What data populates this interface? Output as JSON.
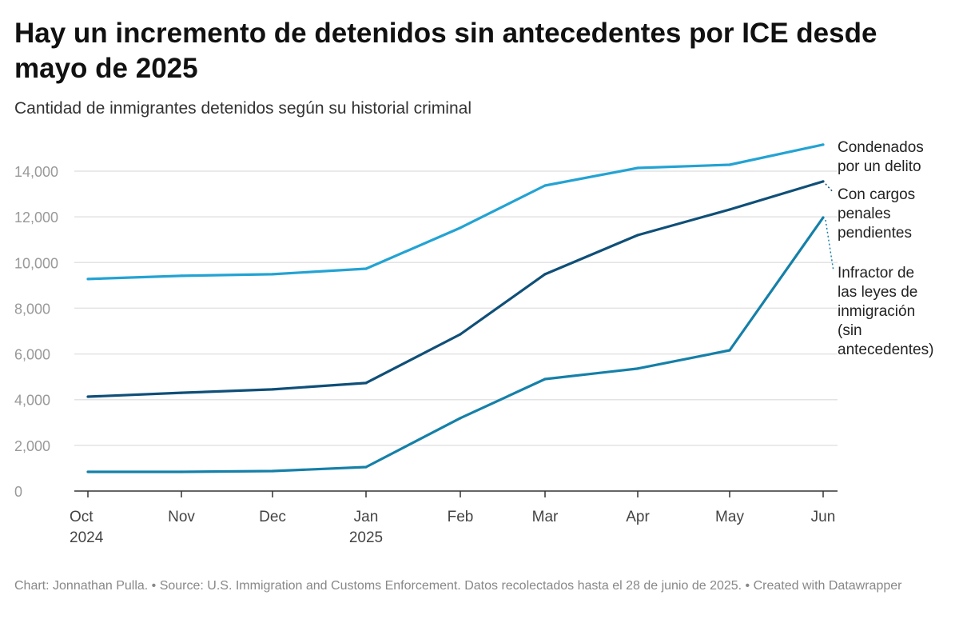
{
  "title": "Hay un incremento de detenidos sin antecedentes por ICE desde mayo de 2025",
  "subtitle": "Cantidad de inmigrantes detenidos según su historial criminal",
  "footer": "Chart: Jonnathan Pulla. • Source: U.S. Immigration and Customs Enforcement. Datos recolectados hasta el 28 de junio de 2025. • Created with Datawrapper",
  "chart_data": {
    "type": "line",
    "categories": [
      "Oct 2024",
      "Nov",
      "Dec",
      "Jan 2025",
      "Feb",
      "Mar",
      "Apr",
      "May",
      "Jun"
    ],
    "x_tick_labels": [
      [
        "Oct",
        "2024"
      ],
      [
        "Nov"
      ],
      [
        "Dec"
      ],
      [
        "Jan",
        "2025"
      ],
      [
        "Feb"
      ],
      [
        "Mar"
      ],
      [
        "Apr"
      ],
      [
        "May"
      ],
      [
        "Jun"
      ]
    ],
    "ylim": [
      0,
      15500
    ],
    "y_ticks": [
      0,
      2000,
      4000,
      6000,
      8000,
      10000,
      12000,
      14000
    ],
    "y_tick_labels": [
      "0",
      "2,000",
      "4,000",
      "6,000",
      "8,000",
      "10,000",
      "12,000",
      "14,000"
    ],
    "grid": true,
    "legend": "direct labels at right",
    "series": [
      {
        "name": "Condenados por un delito",
        "label_lines": [
          "Condenados",
          "por un delito"
        ],
        "color": "#23a3d3",
        "values": [
          9280,
          9420,
          9490,
          9730,
          11520,
          13370,
          14140,
          14280,
          15160
        ]
      },
      {
        "name": "Con cargos penales pendientes",
        "label_lines": [
          "Con cargos",
          "penales",
          "pendientes"
        ],
        "color": "#0f4f78",
        "values": [
          4130,
          4300,
          4450,
          4730,
          6860,
          9490,
          11200,
          12320,
          13550
        ]
      },
      {
        "name": "Infractor de las leyes de inmigración (sin antecedentes)",
        "label_lines": [
          "Infractor de",
          "las leyes de",
          "inmigración",
          "(sin",
          "antecedentes)"
        ],
        "color": "#1580a8",
        "values": [
          840,
          840,
          875,
          1050,
          3190,
          4900,
          5360,
          6160,
          11970
        ]
      }
    ]
  }
}
